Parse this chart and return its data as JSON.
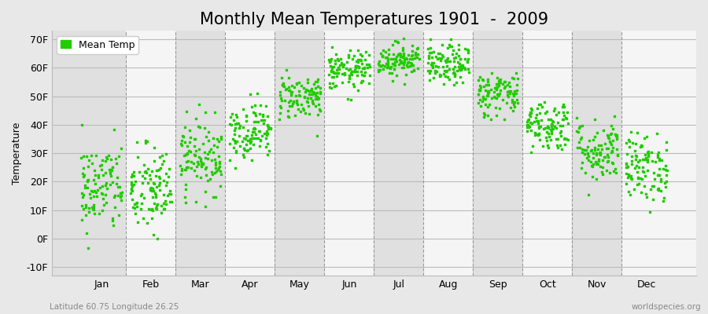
{
  "title": "Monthly Mean Temperatures 1901  -  2009",
  "ylabel": "Temperature",
  "xlabel_labels": [
    "Jan",
    "Feb",
    "Mar",
    "Apr",
    "May",
    "Jun",
    "Jul",
    "Aug",
    "Sep",
    "Oct",
    "Nov",
    "Dec"
  ],
  "ytick_labels": [
    "-10F",
    "0F",
    "10F",
    "20F",
    "30F",
    "40F",
    "50F",
    "60F",
    "70F"
  ],
  "ytick_values": [
    -10,
    0,
    10,
    20,
    30,
    40,
    50,
    60,
    70
  ],
  "ylim": [
    -13,
    73
  ],
  "xlim": [
    0.0,
    13.0
  ],
  "dot_color": "#22cc00",
  "dot_size": 4,
  "background_color": "#e8e8e8",
  "plot_bg_color_light": "#f5f5f5",
  "plot_bg_color_dark": "#e0e0e0",
  "grid_color": "#bbbbbb",
  "footer_left": "Latitude 60.75 Longitude 26.25",
  "footer_right": "worldspecies.org",
  "legend_label": "Mean Temp",
  "title_fontsize": 15,
  "label_fontsize": 9,
  "tick_fontsize": 9,
  "means_F": [
    18,
    17,
    29,
    38,
    50,
    59,
    63,
    61,
    51,
    40,
    31,
    25
  ],
  "stds_F": [
    8.0,
    8.0,
    6.5,
    5.0,
    4.0,
    3.5,
    3.0,
    3.5,
    4.0,
    4.5,
    5.5,
    6.0
  ],
  "n_years": 109,
  "seed": 42
}
